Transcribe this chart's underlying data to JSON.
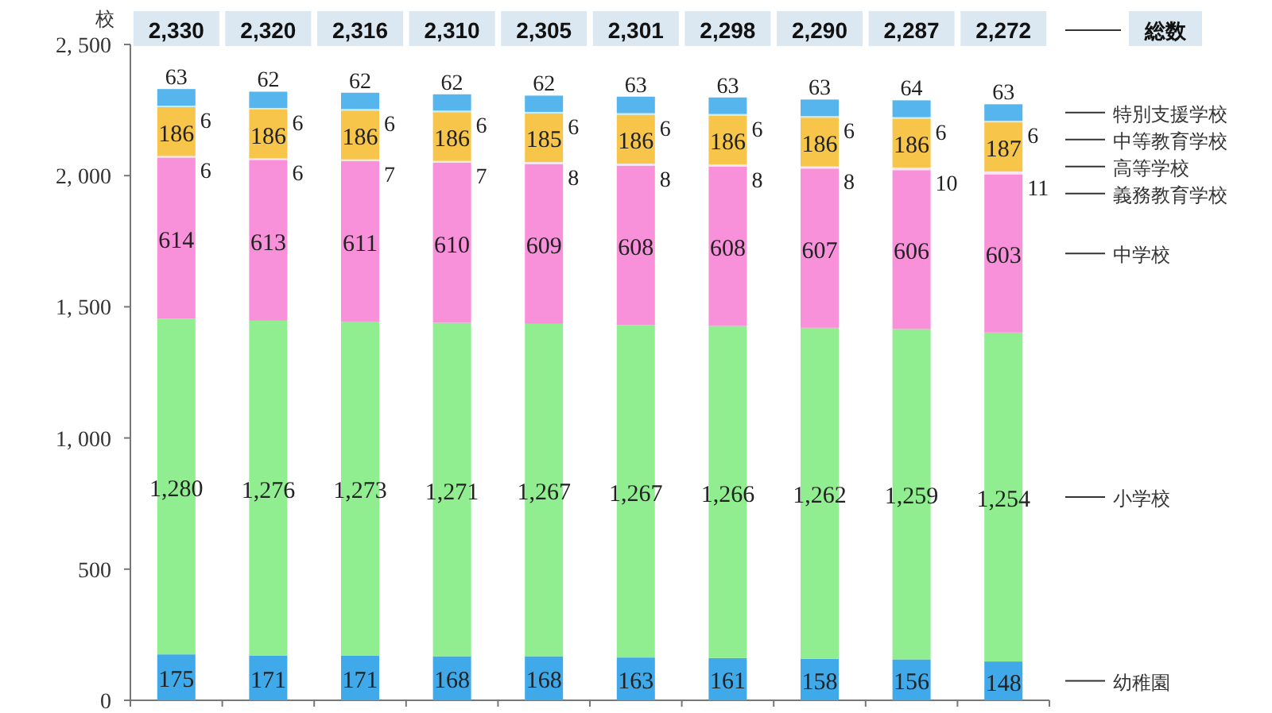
{
  "chart_data": {
    "type": "bar",
    "stacked": true,
    "legend": "right",
    "ylabel": "校",
    "categories": [
      null,
      null,
      null,
      null,
      null,
      null,
      null,
      null,
      null,
      null
    ],
    "ylim": [
      0,
      2500
    ],
    "yticks": [
      0,
      500,
      {
        "value": 1000,
        "label": "1, 000"
      },
      {
        "value": 1500,
        "label": "1, 500"
      },
      {
        "value": 2000,
        "label": "2, 000"
      },
      {
        "value": 2500,
        "label": "2, 500"
      }
    ],
    "series": [
      {
        "name": "幼稚園",
        "color": "#3fa9ea",
        "values": [
          175,
          171,
          171,
          168,
          168,
          163,
          161,
          158,
          156,
          148
        ]
      },
      {
        "name": "小学校",
        "color": "#90ee90",
        "values": [
          1280,
          1276,
          1273,
          1271,
          1267,
          1267,
          1266,
          1262,
          1259,
          1254
        ],
        "value_labels": [
          "1,280",
          "1,276",
          "1,273",
          "1,271",
          "1,267",
          "1,267",
          "1,266",
          "1,262",
          "1,259",
          "1,254"
        ]
      },
      {
        "name": "中学校",
        "color": "#f890da",
        "values": [
          614,
          613,
          611,
          610,
          609,
          608,
          608,
          607,
          606,
          603
        ]
      },
      {
        "name": "義務教育学校",
        "color": "#f5e6f0",
        "values": [
          6,
          6,
          7,
          7,
          8,
          8,
          8,
          8,
          10,
          11
        ]
      },
      {
        "name": "高等学校",
        "color": "#f7c54a",
        "values": [
          186,
          186,
          186,
          186,
          185,
          186,
          186,
          186,
          186,
          187
        ]
      },
      {
        "name": "中等教育学校",
        "color": "#c8ecf5",
        "values": [
          6,
          6,
          6,
          6,
          6,
          6,
          6,
          6,
          6,
          6
        ]
      },
      {
        "name": "特別支援学校",
        "color": "#55b5ec",
        "values": [
          63,
          62,
          62,
          62,
          62,
          63,
          63,
          63,
          64,
          63
        ]
      }
    ],
    "data_labels": true,
    "totals": [
      "2,330",
      "2,320",
      "2,316",
      "2,310",
      "2,305",
      "2,301",
      "2,298",
      "2,290",
      "2,287",
      "2,272"
    ],
    "annotations": [
      "総数"
    ]
  }
}
